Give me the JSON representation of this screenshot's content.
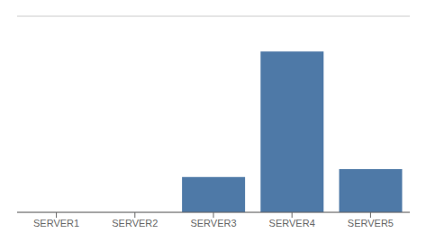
{
  "chart_data": {
    "type": "bar",
    "categories": [
      "SERVER1",
      "SERVER2",
      "SERVER3",
      "SERVER4",
      "SERVER5"
    ],
    "values": [
      0,
      0,
      18,
      82,
      22
    ],
    "color": "#4e79a7",
    "ylim": [
      0,
      100
    ],
    "yticks": [
      0,
      10,
      20,
      30,
      40,
      50,
      60,
      70,
      80,
      90,
      100
    ],
    "grid": true,
    "tick_labels": "x"
  }
}
